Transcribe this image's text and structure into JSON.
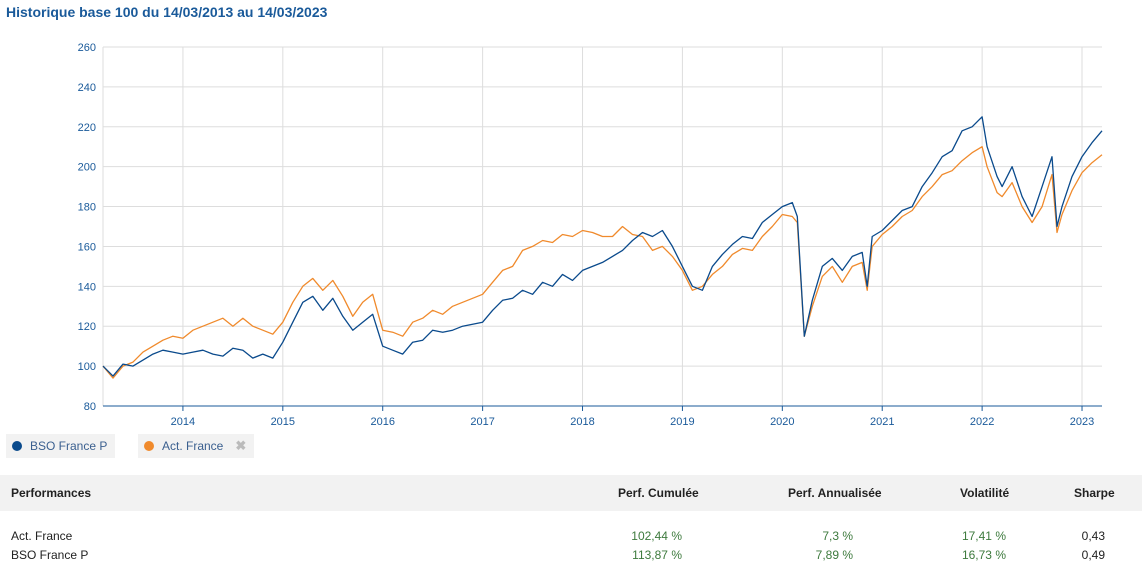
{
  "title": "Historique base 100 du 14/03/2013 au 14/03/2023",
  "legend": {
    "items": [
      {
        "label": "BSO France P",
        "color": "#0a4a8c"
      },
      {
        "label": "Act. France",
        "color": "#f08a2c",
        "remove_icon": "close-icon"
      }
    ]
  },
  "chart_data": {
    "type": "line",
    "title": "Historique base 100 du 14/03/2013 au 14/03/2023",
    "xlabel": "",
    "ylabel": "",
    "ylim": [
      80,
      260
    ],
    "xlim": [
      2013.2,
      2023.2
    ],
    "y_ticks": [
      "80",
      "100",
      "120",
      "140",
      "160",
      "180",
      "200",
      "220",
      "240",
      "260"
    ],
    "x_ticks": [
      "2014",
      "2015",
      "2016",
      "2017",
      "2018",
      "2019",
      "2020",
      "2021",
      "2022",
      "2023"
    ],
    "grid": true,
    "legend_position": "bottom-left",
    "series": [
      {
        "name": "BSO France P",
        "color": "#0a4a8c",
        "x": [
          2013.2,
          2013.3,
          2013.4,
          2013.5,
          2013.6,
          2013.7,
          2013.8,
          2013.9,
          2014.0,
          2014.1,
          2014.2,
          2014.3,
          2014.4,
          2014.5,
          2014.6,
          2014.7,
          2014.8,
          2014.9,
          2015.0,
          2015.1,
          2015.2,
          2015.3,
          2015.4,
          2015.5,
          2015.6,
          2015.7,
          2015.8,
          2015.9,
          2016.0,
          2016.1,
          2016.2,
          2016.3,
          2016.4,
          2016.5,
          2016.6,
          2016.7,
          2016.8,
          2016.9,
          2017.0,
          2017.1,
          2017.2,
          2017.3,
          2017.4,
          2017.5,
          2017.6,
          2017.7,
          2017.8,
          2017.9,
          2018.0,
          2018.1,
          2018.2,
          2018.3,
          2018.4,
          2018.5,
          2018.6,
          2018.7,
          2018.8,
          2018.9,
          2019.0,
          2019.1,
          2019.2,
          2019.3,
          2019.4,
          2019.5,
          2019.6,
          2019.7,
          2019.8,
          2019.9,
          2020.0,
          2020.1,
          2020.15,
          2020.22,
          2020.3,
          2020.4,
          2020.5,
          2020.6,
          2020.7,
          2020.8,
          2020.85,
          2020.9,
          2021.0,
          2021.1,
          2021.2,
          2021.3,
          2021.4,
          2021.5,
          2021.6,
          2021.7,
          2021.8,
          2021.9,
          2022.0,
          2022.05,
          2022.15,
          2022.2,
          2022.3,
          2022.4,
          2022.5,
          2022.6,
          2022.7,
          2022.75,
          2022.8,
          2022.9,
          2023.0,
          2023.1,
          2023.2
        ],
        "values": [
          100,
          95,
          101,
          100,
          103,
          106,
          108,
          107,
          106,
          107,
          108,
          106,
          105,
          109,
          108,
          104,
          106,
          104,
          112,
          122,
          132,
          135,
          128,
          134,
          125,
          118,
          122,
          126,
          110,
          108,
          106,
          112,
          113,
          118,
          117,
          118,
          120,
          121,
          122,
          128,
          133,
          134,
          138,
          136,
          142,
          140,
          146,
          143,
          148,
          150,
          152,
          155,
          158,
          163,
          167,
          165,
          168,
          160,
          150,
          140,
          138,
          150,
          156,
          161,
          165,
          164,
          172,
          176,
          180,
          182,
          175,
          115,
          133,
          150,
          154,
          148,
          155,
          157,
          140,
          165,
          168,
          173,
          178,
          180,
          190,
          197,
          205,
          208,
          218,
          220,
          225,
          210,
          195,
          190,
          200,
          185,
          175,
          190,
          205,
          170,
          180,
          195,
          205,
          212,
          218
        ]
      },
      {
        "name": "Act. France",
        "color": "#f08a2c",
        "x": [
          2013.2,
          2013.3,
          2013.4,
          2013.5,
          2013.6,
          2013.7,
          2013.8,
          2013.9,
          2014.0,
          2014.1,
          2014.2,
          2014.3,
          2014.4,
          2014.5,
          2014.6,
          2014.7,
          2014.8,
          2014.9,
          2015.0,
          2015.1,
          2015.2,
          2015.3,
          2015.4,
          2015.5,
          2015.6,
          2015.7,
          2015.8,
          2015.9,
          2016.0,
          2016.1,
          2016.2,
          2016.3,
          2016.4,
          2016.5,
          2016.6,
          2016.7,
          2016.8,
          2016.9,
          2017.0,
          2017.1,
          2017.2,
          2017.3,
          2017.4,
          2017.5,
          2017.6,
          2017.7,
          2017.8,
          2017.9,
          2018.0,
          2018.1,
          2018.2,
          2018.3,
          2018.4,
          2018.5,
          2018.6,
          2018.7,
          2018.8,
          2018.9,
          2019.0,
          2019.1,
          2019.2,
          2019.3,
          2019.4,
          2019.5,
          2019.6,
          2019.7,
          2019.8,
          2019.9,
          2020.0,
          2020.1,
          2020.15,
          2020.22,
          2020.3,
          2020.4,
          2020.5,
          2020.6,
          2020.7,
          2020.8,
          2020.85,
          2020.9,
          2021.0,
          2021.1,
          2021.2,
          2021.3,
          2021.4,
          2021.5,
          2021.6,
          2021.7,
          2021.8,
          2021.9,
          2022.0,
          2022.05,
          2022.15,
          2022.2,
          2022.3,
          2022.4,
          2022.5,
          2022.6,
          2022.7,
          2022.75,
          2022.8,
          2022.9,
          2023.0,
          2023.1,
          2023.2
        ],
        "values": [
          100,
          94,
          100,
          102,
          107,
          110,
          113,
          115,
          114,
          118,
          120,
          122,
          124,
          120,
          124,
          120,
          118,
          116,
          122,
          132,
          140,
          144,
          138,
          143,
          135,
          125,
          132,
          136,
          118,
          117,
          115,
          122,
          124,
          128,
          126,
          130,
          132,
          134,
          136,
          142,
          148,
          150,
          158,
          160,
          163,
          162,
          166,
          165,
          168,
          167,
          165,
          165,
          170,
          166,
          165,
          158,
          160,
          155,
          148,
          138,
          140,
          146,
          150,
          156,
          159,
          158,
          165,
          170,
          176,
          175,
          172,
          115,
          130,
          145,
          150,
          142,
          150,
          152,
          138,
          160,
          166,
          170,
          175,
          178,
          185,
          190,
          196,
          198,
          203,
          207,
          210,
          200,
          187,
          185,
          192,
          180,
          172,
          180,
          196,
          167,
          176,
          188,
          197,
          202,
          206
        ]
      }
    ]
  },
  "performance_table": {
    "headers": {
      "label": "Performances",
      "cumulative": "Perf. Cumulée",
      "annualized": "Perf. Annualisée",
      "volatility": "Volatilité",
      "sharpe": "Sharpe"
    },
    "rows": [
      {
        "name": "Act. France",
        "cumulative": "102,44 %",
        "annualized": "7,3 %",
        "volatility": "17,41 %",
        "sharpe": "0,43"
      },
      {
        "name": "BSO France P",
        "cumulative": "113,87 %",
        "annualized": "7,89 %",
        "volatility": "16,73 %",
        "sharpe": "0,49"
      }
    ]
  }
}
